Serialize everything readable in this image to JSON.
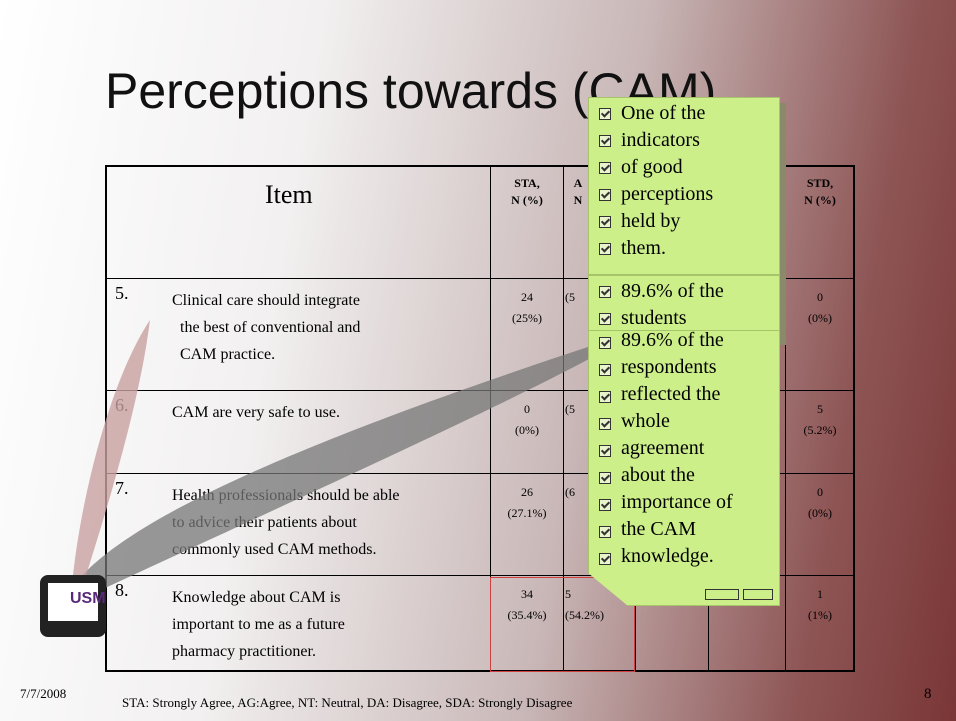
{
  "title": "Perceptions towards (CAM)…",
  "table": {
    "header": {
      "item": "Item",
      "sta": [
        "STA,",
        "N (%)"
      ],
      "ag": [
        "A",
        "N"
      ],
      "std": [
        "STD,",
        "N (%)"
      ]
    },
    "rows": [
      {
        "number": "5.",
        "item": [
          "Clinical care should integrate",
          "the best of conventional and",
          "CAM practice."
        ],
        "sta": [
          "24",
          "(25%)"
        ],
        "ag": [
          "(5"
        ],
        "std": [
          "0",
          "(0%)"
        ]
      },
      {
        "number": "6.",
        "item": [
          "CAM are very safe to use."
        ],
        "sta": [
          "0",
          "(0%)"
        ],
        "ag": [
          "(5"
        ],
        "std": [
          "5",
          "(5.2%)"
        ]
      },
      {
        "number": "7.",
        "item": [
          "Health professionals should be able",
          "to advice their patients about",
          "commonly used CAM methods."
        ],
        "sta": [
          "26",
          "(27.1%)"
        ],
        "ag": [
          "(6"
        ],
        "std": [
          "0",
          "(0%)"
        ]
      },
      {
        "number": "8.",
        "item": [
          "Knowledge about CAM is",
          "important to me as a future",
          "pharmacy practitioner."
        ],
        "sta": [
          "34",
          "(35.4%)"
        ],
        "ag": [
          "5",
          "(54.2%)"
        ],
        "std": [
          "1",
          "(1%)"
        ]
      }
    ]
  },
  "callouts": [
    [
      "One of the",
      "indicators",
      "of good",
      "perceptions",
      "held by",
      "them."
    ],
    [
      "89.6% of the",
      "students"
    ],
    [
      "89.6% of the",
      "respondents",
      "reflected the",
      "whole",
      "agreement",
      "about the",
      "importance of",
      "the CAM",
      "knowledge."
    ]
  ],
  "logo": "USM",
  "footer": {
    "date": "7/7/2008",
    "legend": "STA: Strongly Agree,   AG:Agree,   NT: Neutral,   DA: Disagree,   SDA: Strongly Disagree",
    "page": "8"
  }
}
